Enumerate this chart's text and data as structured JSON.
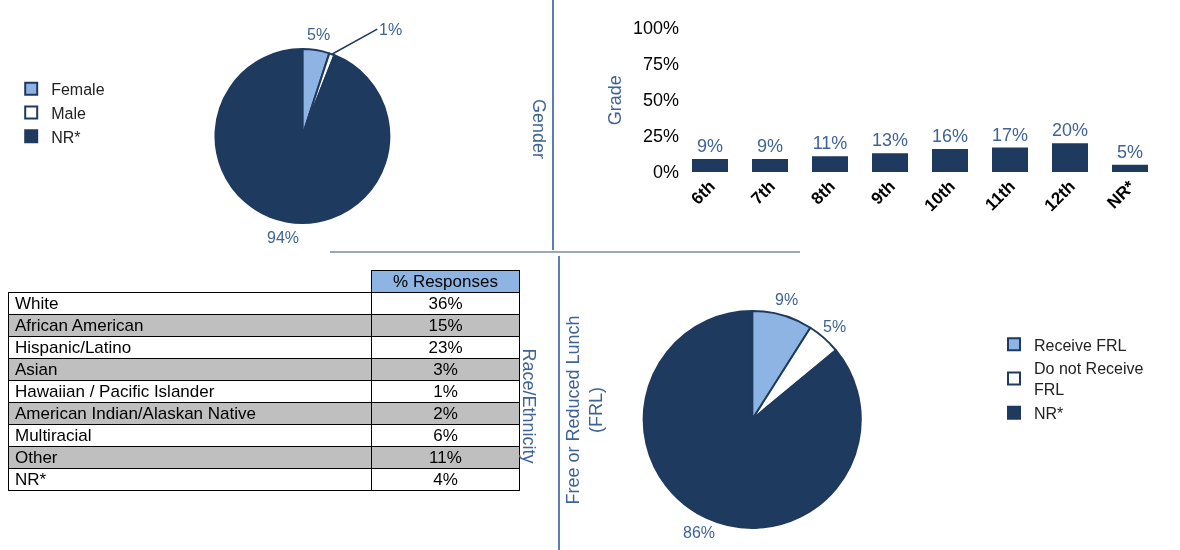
{
  "chart_data": [
    {
      "type": "pie",
      "title": "Gender",
      "categories": [
        "Female",
        "Male",
        "NR*"
      ],
      "values": [
        5,
        1,
        94
      ],
      "value_labels": [
        "5%",
        "1%",
        "94%"
      ],
      "colors": [
        "#8db4e2",
        "#ffffff",
        "#1f3a5f"
      ],
      "legend": "left"
    },
    {
      "type": "bar",
      "title": "Grade",
      "categories": [
        "6th",
        "7th",
        "8th",
        "9th",
        "10th",
        "11th",
        "12th",
        "NR*"
      ],
      "values": [
        9,
        9,
        11,
        13,
        16,
        17,
        20,
        5
      ],
      "value_labels": [
        "9%",
        "9%",
        "11%",
        "13%",
        "16%",
        "17%",
        "20%",
        "5%"
      ],
      "color": "#1f3a5f",
      "ylim": [
        0,
        100
      ],
      "yticks": [
        {
          "value": 0,
          "label": "0%"
        },
        {
          "value": 25,
          "label": "25%"
        },
        {
          "value": 50,
          "label": "50%"
        },
        {
          "value": 75,
          "label": "75%"
        },
        {
          "value": 100,
          "label": "100%"
        }
      ],
      "grid": false,
      "legend": false
    },
    {
      "type": "other",
      "title": "Race/Ethnicity",
      "xlabel": "% Responses",
      "categories": [
        "White",
        "African American",
        "Hispanic/Latino",
        "Asian",
        "Hawaiian / Pacific Islander",
        "American Indian/Alaskan Native",
        "Multiracial",
        "Other",
        "NR*"
      ],
      "values": [
        36,
        15,
        23,
        3,
        1,
        2,
        6,
        11,
        4
      ],
      "value_labels": [
        "36%",
        "15%",
        "23%",
        "3%",
        "1%",
        "2%",
        "6%",
        "11%",
        "4%"
      ]
    },
    {
      "type": "pie",
      "title": "Free or Reduced Lunch\n(FRL)",
      "categories": [
        "Receive FRL",
        "Do not Receive\nFRL",
        "NR*"
      ],
      "values": [
        9,
        5,
        86
      ],
      "value_labels": [
        "9%",
        "5%",
        "86%"
      ],
      "colors": [
        "#8db4e2",
        "#ffffff",
        "#1f3a5f"
      ],
      "legend": "right"
    }
  ]
}
